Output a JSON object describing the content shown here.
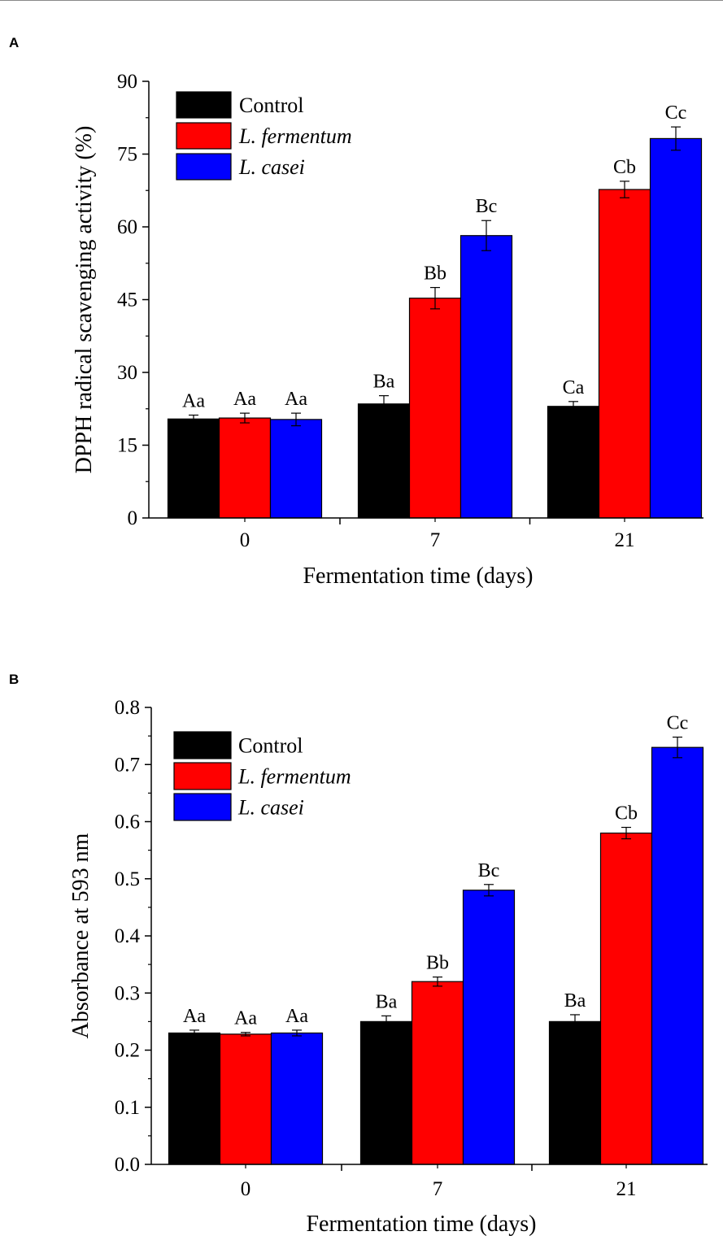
{
  "panels": [
    {
      "letter": "A"
    },
    {
      "letter": "B"
    }
  ],
  "chart_data": [
    {
      "type": "bar",
      "title": "",
      "categories": [
        "0",
        "7",
        "21"
      ],
      "xlabel": "Fermentation time (days)",
      "ylabel": "DPPH radical scavenging activity (%)",
      "ylim": [
        0,
        90
      ],
      "yticks": [
        "0",
        "15",
        "30",
        "45",
        "60",
        "75",
        "90"
      ],
      "legend_position": "top-left",
      "series": [
        {
          "name": "Control",
          "italic": false,
          "color": "#000000",
          "values": [
            20.4,
            23.5,
            23.0
          ],
          "errors": [
            0.8,
            1.7,
            1.0
          ],
          "labels": [
            "Aa",
            "Ba",
            "Ca"
          ]
        },
        {
          "name": "L. fermentum",
          "italic": true,
          "color": "#ff0000",
          "values": [
            20.6,
            45.3,
            67.7
          ],
          "errors": [
            1.0,
            2.2,
            1.7
          ],
          "labels": [
            "Aa",
            "Bb",
            "Cb"
          ]
        },
        {
          "name": "L. casei",
          "italic": true,
          "color": "#0000ff",
          "values": [
            20.3,
            58.2,
            78.2
          ],
          "errors": [
            1.3,
            3.1,
            2.4
          ],
          "labels": [
            "Aa",
            "Bc",
            "Cc"
          ]
        }
      ]
    },
    {
      "type": "bar",
      "title": "",
      "categories": [
        "0",
        "7",
        "21"
      ],
      "xlabel": "Fermentation time (days)",
      "ylabel": "Absorbance at 593 nm",
      "ylim": [
        0,
        0.8
      ],
      "yticks": [
        "0.0",
        "0.1",
        "0.2",
        "0.3",
        "0.4",
        "0.5",
        "0.6",
        "0.7",
        "0.8"
      ],
      "legend_position": "top-left",
      "series": [
        {
          "name": "Control",
          "italic": false,
          "color": "#000000",
          "values": [
            0.23,
            0.25,
            0.25
          ],
          "errors": [
            0.005,
            0.01,
            0.012
          ],
          "labels": [
            "Aa",
            "Ba",
            "Ba"
          ]
        },
        {
          "name": "L. fermentum",
          "italic": true,
          "color": "#ff0000",
          "values": [
            0.228,
            0.32,
            0.58
          ],
          "errors": [
            0.003,
            0.008,
            0.01
          ],
          "labels": [
            "Aa",
            "Bb",
            "Cb"
          ]
        },
        {
          "name": "L. casei",
          "italic": true,
          "color": "#0000ff",
          "values": [
            0.23,
            0.48,
            0.73
          ],
          "errors": [
            0.005,
            0.01,
            0.018
          ],
          "labels": [
            "Aa",
            "Bc",
            "Cc"
          ]
        }
      ]
    }
  ]
}
